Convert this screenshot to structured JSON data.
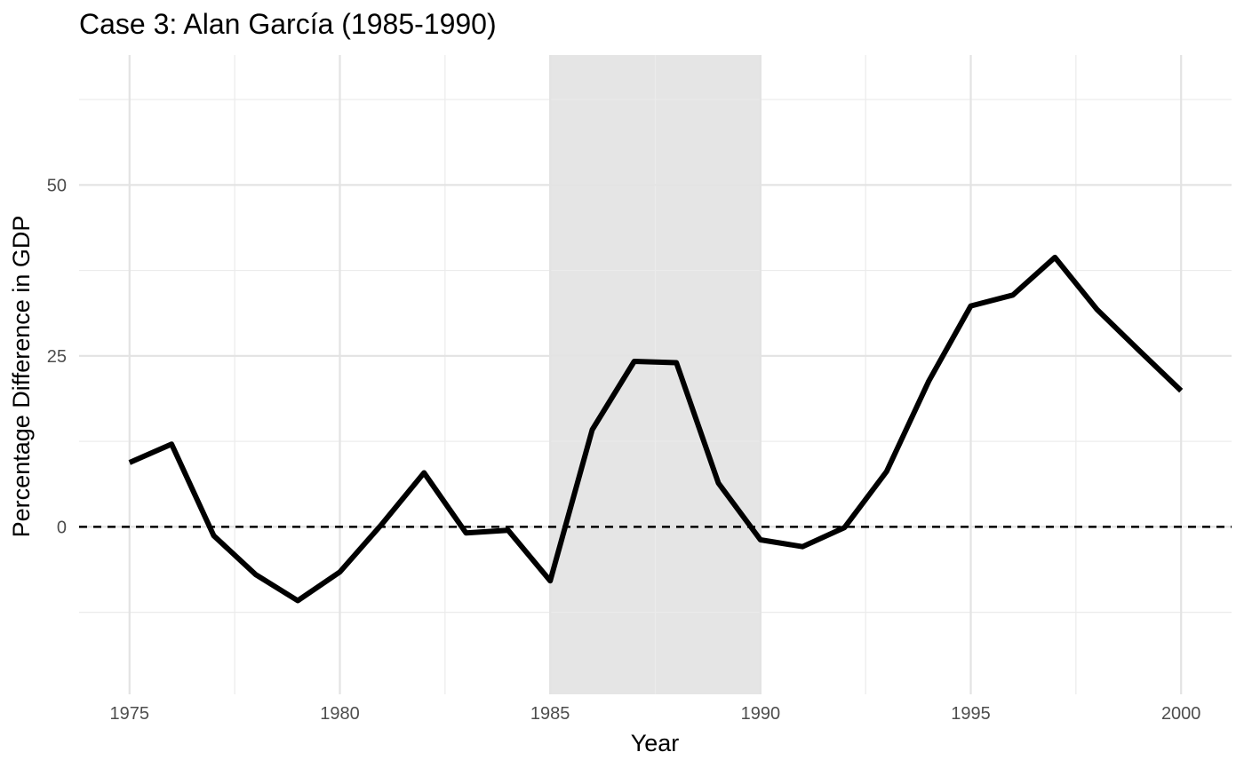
{
  "chart_data": {
    "type": "line",
    "title": "Case 3: Alan García (1985-1990)",
    "xlabel": "Year",
    "ylabel": "Percentage Difference in GDP",
    "xlim": [
      1973.8,
      2001.2
    ],
    "ylim": [
      -24.5,
      69
    ],
    "x_ticks": [
      1975,
      1980,
      1985,
      1990,
      1995,
      2000
    ],
    "x_minor_ticks": [
      1977.5,
      1982.5,
      1987.5,
      1992.5,
      1997.5
    ],
    "y_ticks": [
      0,
      25,
      50
    ],
    "y_minor_ticks": [
      -12.5,
      12.5,
      37.5,
      62.5
    ],
    "grid": true,
    "reference_line": {
      "y": 0,
      "style": "dashed",
      "color": "#000000"
    },
    "shaded_region": {
      "x_start": 1985,
      "x_end": 1990,
      "color": "#e5e5e5"
    },
    "series": [
      {
        "color": "#000000",
        "x": [
          1975,
          1976,
          1977,
          1978,
          1979,
          1980,
          1981,
          1982,
          1983,
          1984,
          1985,
          1986,
          1987,
          1988,
          1989,
          1990,
          1991,
          1992,
          1993,
          1994,
          1995,
          1996,
          1997,
          1998,
          1999,
          2000
        ],
        "y": [
          9.4,
          12.1,
          -1.3,
          -7.0,
          -10.8,
          -6.6,
          0.4,
          7.9,
          -0.9,
          -0.5,
          -7.9,
          14.2,
          24.2,
          24.0,
          6.4,
          -1.9,
          -2.9,
          -0.1,
          8.1,
          21.3,
          32.3,
          33.9,
          39.4,
          31.8,
          25.8,
          19.9
        ]
      }
    ]
  }
}
